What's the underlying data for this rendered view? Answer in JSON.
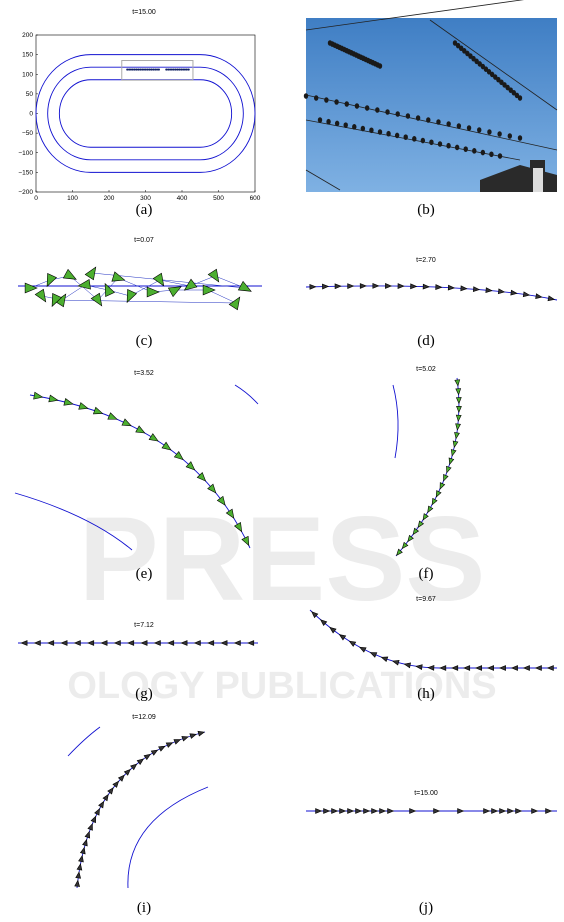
{
  "panels": [
    {
      "title": "t=15.00",
      "caption": "(a)",
      "xticks": [
        "0",
        "100",
        "200",
        "300",
        "400",
        "500",
        "600"
      ],
      "yticks": [
        "200",
        "150",
        "100",
        "50",
        "0",
        "−50",
        "−100",
        "−150",
        "−200"
      ]
    },
    {
      "caption": "(b)"
    },
    {
      "title": "t=0.07",
      "caption": "(c)"
    },
    {
      "title": "t=2.70",
      "caption": "(d)"
    },
    {
      "title": "t=3.52",
      "caption": "(e)"
    },
    {
      "title": "t=5.02",
      "caption": "(f)"
    },
    {
      "title": "t=7.12",
      "caption": "(g)"
    },
    {
      "title": "t=9.67",
      "caption": "(h)"
    },
    {
      "title": "t=12.09",
      "caption": "(i)"
    },
    {
      "title": "t=15.00",
      "caption": "(j)"
    }
  ],
  "watermark": [
    "PRESS",
    "OLOGY PUBLICATIONS"
  ]
}
